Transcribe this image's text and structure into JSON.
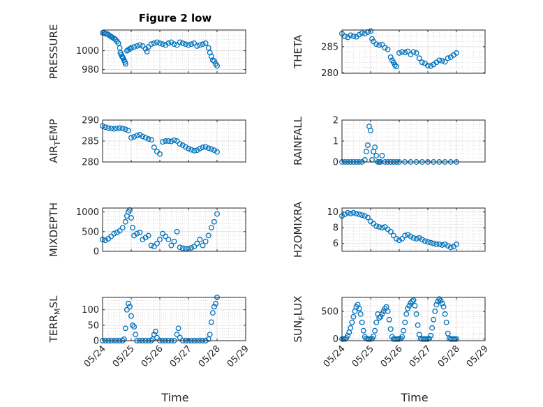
{
  "figure": {
    "title": "Figure 2 low",
    "marker_color": "#0072BD",
    "xlabel": "Time"
  },
  "chart_data": [
    {
      "type": "scatter",
      "id": "pressure",
      "ylabel": "PRESSURE",
      "xlim": [
        0,
        5
      ],
      "ylim": [
        976,
        1022
      ],
      "yticks": [
        980,
        1000
      ],
      "xticks": [
        0,
        1,
        2,
        3,
        4,
        5
      ],
      "xticklabels": [
        "05/24",
        "05/25",
        "05/26",
        "05/27",
        "05/28",
        "05/29"
      ],
      "grid": true,
      "x": [
        0,
        0.05,
        0.1,
        0.15,
        0.2,
        0.25,
        0.3,
        0.35,
        0.4,
        0.45,
        0.5,
        0.55,
        0.6,
        0.62,
        0.65,
        0.68,
        0.7,
        0.72,
        0.75,
        0.78,
        0.8,
        0.85,
        0.9,
        0.95,
        1.0,
        1.1,
        1.2,
        1.3,
        1.4,
        1.5,
        1.55,
        1.6,
        1.7,
        1.8,
        1.9,
        2.0,
        2.1,
        2.2,
        2.3,
        2.4,
        2.5,
        2.6,
        2.7,
        2.8,
        2.9,
        3.0,
        3.1,
        3.2,
        3.3,
        3.4,
        3.5,
        3.6,
        3.7,
        3.75,
        3.8,
        3.85,
        3.9,
        3.95,
        4.0
      ],
      "y": [
        1019,
        1019,
        1018,
        1018,
        1017,
        1016,
        1015,
        1014,
        1013,
        1012,
        1010,
        1008,
        1003,
        998,
        996,
        994,
        993,
        992,
        990,
        988,
        986,
        1000,
        1001,
        1002,
        1003,
        1004,
        1005,
        1006,
        1005,
        1002,
        999,
        1004,
        1007,
        1008,
        1009,
        1008,
        1007,
        1006,
        1008,
        1009,
        1007,
        1006,
        1009,
        1008,
        1007,
        1006,
        1007,
        1008,
        1005,
        1006,
        1007,
        1008,
        1003,
        998,
        994,
        990,
        989,
        986,
        984
      ]
    },
    {
      "type": "scatter",
      "id": "theta",
      "ylabel": "THETA",
      "xlim": [
        0,
        5
      ],
      "ylim": [
        279.9,
        288.2
      ],
      "yticks": [
        280,
        285
      ],
      "xticks": [
        0,
        1,
        2,
        3,
        4,
        5
      ],
      "xticklabels": [
        "05/24",
        "05/25",
        "05/26",
        "05/27",
        "05/28",
        "05/29"
      ],
      "grid": true,
      "x": [
        0,
        0.1,
        0.2,
        0.3,
        0.4,
        0.5,
        0.6,
        0.7,
        0.8,
        0.9,
        1.0,
        1.05,
        1.1,
        1.2,
        1.3,
        1.4,
        1.5,
        1.6,
        1.7,
        1.75,
        1.8,
        1.85,
        1.9,
        2.0,
        2.1,
        2.2,
        2.3,
        2.4,
        2.5,
        2.6,
        2.7,
        2.8,
        2.9,
        3.0,
        3.1,
        3.2,
        3.3,
        3.4,
        3.5,
        3.6,
        3.7,
        3.8,
        3.9,
        4.0
      ],
      "y": [
        287.5,
        287,
        286.8,
        287.2,
        287,
        286.9,
        287.3,
        287.6,
        287.5,
        287.8,
        288,
        286.5,
        286,
        285.5,
        285.3,
        285.4,
        284.8,
        284.5,
        283,
        282.4,
        282,
        281.5,
        281.2,
        283.8,
        284,
        283.9,
        284.1,
        283.5,
        284,
        283.8,
        282.8,
        282,
        281.8,
        281.4,
        281.3,
        281.6,
        282,
        282.4,
        282.3,
        282.1,
        282.8,
        283,
        283.4,
        283.8
      ]
    },
    {
      "type": "scatter",
      "id": "air_temp",
      "ylabel": "AIR_TEMP",
      "xlim": [
        0,
        5
      ],
      "ylim": [
        280,
        290
      ],
      "yticks": [
        280,
        285,
        290
      ],
      "xticks": [
        0,
        1,
        2,
        3,
        4,
        5
      ],
      "xticklabels": [
        "05/24",
        "05/25",
        "05/26",
        "05/27",
        "05/28",
        "05/29"
      ],
      "grid": true,
      "x": [
        0,
        0.1,
        0.2,
        0.3,
        0.4,
        0.5,
        0.6,
        0.7,
        0.8,
        0.9,
        1.0,
        1.1,
        1.2,
        1.3,
        1.4,
        1.5,
        1.6,
        1.7,
        1.8,
        1.9,
        2.0,
        2.1,
        2.2,
        2.3,
        2.4,
        2.5,
        2.6,
        2.7,
        2.8,
        2.9,
        3.0,
        3.1,
        3.2,
        3.3,
        3.4,
        3.5,
        3.6,
        3.7,
        3.8,
        3.9,
        4.0
      ],
      "y": [
        288.6,
        288.3,
        288.1,
        288,
        287.9,
        288,
        288.1,
        288,
        287.8,
        287.5,
        285.8,
        286,
        286.3,
        286.5,
        286.1,
        285.8,
        285.5,
        285.3,
        283.5,
        282.5,
        281.9,
        284.8,
        285,
        285,
        284.9,
        285.2,
        285,
        284.3,
        284,
        283.6,
        283.2,
        282.9,
        282.7,
        282.8,
        283.2,
        283.5,
        283.6,
        283.3,
        283.1,
        282.8,
        282.4
      ]
    },
    {
      "type": "scatter",
      "id": "rainfall",
      "ylabel": "RAINFALL",
      "xlim": [
        0,
        5
      ],
      "ylim": [
        0,
        2
      ],
      "yticks": [
        0,
        1,
        2
      ],
      "xticks": [
        0,
        1,
        2,
        3,
        4,
        5
      ],
      "xticklabels": [
        "05/24",
        "05/25",
        "05/26",
        "05/27",
        "05/28",
        "05/29"
      ],
      "grid": true,
      "x": [
        0,
        0.1,
        0.2,
        0.3,
        0.4,
        0.5,
        0.6,
        0.7,
        0.8,
        0.85,
        0.9,
        0.95,
        1.0,
        1.05,
        1.1,
        1.15,
        1.2,
        1.25,
        1.3,
        1.35,
        1.4,
        1.5,
        1.6,
        1.7,
        1.8,
        1.9,
        2.0,
        2.2,
        2.4,
        2.6,
        2.8,
        3.0,
        3.2,
        3.4,
        3.6,
        3.8,
        4.0
      ],
      "y": [
        0,
        0,
        0,
        0,
        0,
        0,
        0,
        0,
        0.1,
        0.5,
        0.8,
        1.7,
        1.5,
        0.1,
        0.5,
        0.7,
        0.3,
        0,
        0,
        0,
        0.3,
        0,
        0,
        0,
        0,
        0,
        0,
        0,
        0,
        0,
        0,
        0,
        0,
        0,
        0,
        0,
        0
      ]
    },
    {
      "type": "scatter",
      "id": "mixdepth",
      "ylabel": "MIXDEPTH",
      "xlim": [
        0,
        5
      ],
      "ylim": [
        0,
        1100
      ],
      "yticks": [
        0,
        500,
        1000
      ],
      "xticks": [
        0,
        1,
        2,
        3,
        4,
        5
      ],
      "xticklabels": [
        "05/24",
        "05/25",
        "05/26",
        "05/27",
        "05/28",
        "05/29"
      ],
      "grid": true,
      "x": [
        0,
        0.1,
        0.2,
        0.3,
        0.4,
        0.5,
        0.6,
        0.7,
        0.8,
        0.85,
        0.9,
        0.95,
        1.0,
        1.05,
        1.1,
        1.2,
        1.3,
        1.4,
        1.5,
        1.6,
        1.7,
        1.8,
        1.9,
        2.0,
        2.1,
        2.2,
        2.3,
        2.4,
        2.5,
        2.6,
        2.7,
        2.8,
        2.9,
        3.0,
        3.1,
        3.2,
        3.3,
        3.4,
        3.5,
        3.6,
        3.7,
        3.8,
        3.9,
        4.0
      ],
      "y": [
        300,
        280,
        320,
        380,
        450,
        480,
        520,
        600,
        750,
        900,
        1000,
        1050,
        850,
        600,
        400,
        450,
        480,
        300,
        350,
        400,
        150,
        120,
        200,
        300,
        450,
        380,
        300,
        150,
        250,
        500,
        100,
        80,
        70,
        60,
        90,
        120,
        200,
        300,
        150,
        250,
        400,
        600,
        750,
        950
      ]
    },
    {
      "type": "scatter",
      "id": "h2omixra",
      "ylabel": "H2OMIXRA",
      "xlim": [
        0,
        5
      ],
      "ylim": [
        5,
        10.5
      ],
      "yticks": [
        6,
        8,
        10
      ],
      "xticks": [
        0,
        1,
        2,
        3,
        4,
        5
      ],
      "xticklabels": [
        "05/24",
        "05/25",
        "05/26",
        "05/27",
        "05/28",
        "05/29"
      ],
      "grid": true,
      "x": [
        0,
        0.1,
        0.2,
        0.3,
        0.4,
        0.5,
        0.6,
        0.7,
        0.8,
        0.9,
        1.0,
        1.1,
        1.2,
        1.3,
        1.4,
        1.5,
        1.6,
        1.7,
        1.8,
        1.9,
        2.0,
        2.1,
        2.2,
        2.3,
        2.4,
        2.5,
        2.6,
        2.7,
        2.8,
        2.9,
        3.0,
        3.1,
        3.2,
        3.3,
        3.4,
        3.5,
        3.6,
        3.7,
        3.8,
        3.9,
        4.0
      ],
      "y": [
        9.5,
        9.7,
        9.9,
        9.8,
        9.9,
        9.8,
        9.7,
        9.6,
        9.5,
        9.3,
        8.8,
        8.5,
        8.2,
        8.1,
        8,
        8.1,
        7.8,
        7.5,
        7,
        6.6,
        6.4,
        6.6,
        7,
        7.1,
        6.9,
        6.7,
        6.6,
        6.7,
        6.5,
        6.3,
        6.2,
        6.1,
        6.0,
        5.9,
        5.9,
        5.8,
        5.9,
        5.7,
        5.5,
        5.6,
        5.9
      ]
    },
    {
      "type": "scatter",
      "id": "terr_msl",
      "ylabel": "TERR_MSL",
      "xlim": [
        0,
        5
      ],
      "ylim": [
        0,
        140
      ],
      "yticks": [
        0,
        50,
        100
      ],
      "xticks": [
        0,
        1,
        2,
        3,
        4,
        5
      ],
      "xticklabels": [
        "05/24",
        "05/25",
        "05/26",
        "05/27",
        "05/28",
        "05/29"
      ],
      "grid": true,
      "x": [
        0,
        0.1,
        0.2,
        0.3,
        0.4,
        0.5,
        0.6,
        0.7,
        0.75,
        0.8,
        0.85,
        0.9,
        0.95,
        1.0,
        1.05,
        1.1,
        1.15,
        1.2,
        1.3,
        1.4,
        1.5,
        1.6,
        1.7,
        1.75,
        1.8,
        1.85,
        1.9,
        2.0,
        2.1,
        2.2,
        2.3,
        2.4,
        2.5,
        2.6,
        2.65,
        2.7,
        2.8,
        2.9,
        3.0,
        3.1,
        3.2,
        3.3,
        3.4,
        3.5,
        3.6,
        3.7,
        3.75,
        3.8,
        3.85,
        3.9,
        3.95,
        4.0
      ],
      "y": [
        0,
        0,
        0,
        0,
        0,
        0,
        0,
        0,
        5,
        40,
        100,
        120,
        110,
        80,
        50,
        45,
        20,
        0,
        0,
        0,
        0,
        0,
        0,
        5,
        20,
        30,
        10,
        0,
        0,
        0,
        0,
        0,
        0,
        20,
        40,
        10,
        0,
        0,
        0,
        0,
        0,
        0,
        0,
        0,
        0,
        5,
        20,
        60,
        90,
        110,
        120,
        140
      ]
    },
    {
      "type": "scatter",
      "id": "sun_flux",
      "ylabel": "SUN_FLUX",
      "xlim": [
        0,
        5
      ],
      "ylim": [
        -30,
        750
      ],
      "yticks": [
        0,
        500
      ],
      "xticks": [
        0,
        1,
        2,
        3,
        4,
        5
      ],
      "xticklabels": [
        "05/24",
        "05/25",
        "05/26",
        "05/27",
        "05/28",
        "05/29"
      ],
      "grid": true,
      "x": [
        0,
        0.05,
        0.1,
        0.15,
        0.2,
        0.25,
        0.3,
        0.35,
        0.4,
        0.45,
        0.5,
        0.55,
        0.6,
        0.65,
        0.7,
        0.75,
        0.8,
        0.85,
        0.9,
        0.95,
        1.0,
        1.05,
        1.1,
        1.15,
        1.2,
        1.25,
        1.3,
        1.35,
        1.4,
        1.45,
        1.5,
        1.55,
        1.6,
        1.65,
        1.7,
        1.75,
        1.8,
        1.85,
        1.9,
        1.95,
        2.0,
        2.05,
        2.1,
        2.15,
        2.2,
        2.25,
        2.3,
        2.35,
        2.4,
        2.45,
        2.5,
        2.55,
        2.6,
        2.65,
        2.7,
        2.75,
        2.8,
        2.85,
        2.9,
        2.95,
        3.0,
        3.05,
        3.1,
        3.15,
        3.2,
        3.25,
        3.3,
        3.35,
        3.4,
        3.45,
        3.5,
        3.55,
        3.6,
        3.65,
        3.7,
        3.75,
        3.8,
        3.85,
        3.9,
        3.95,
        4.0
      ],
      "y": [
        0,
        0,
        0,
        20,
        60,
        120,
        200,
        300,
        400,
        500,
        580,
        620,
        550,
        450,
        300,
        150,
        40,
        10,
        0,
        0,
        0,
        10,
        50,
        150,
        300,
        450,
        380,
        400,
        450,
        500,
        550,
        580,
        500,
        350,
        180,
        40,
        0,
        0,
        0,
        0,
        0,
        10,
        40,
        150,
        300,
        450,
        550,
        600,
        650,
        680,
        700,
        600,
        450,
        250,
        80,
        10,
        0,
        0,
        0,
        0,
        0,
        10,
        60,
        200,
        350,
        500,
        620,
        680,
        720,
        690,
        640,
        580,
        450,
        300,
        100,
        10,
        0,
        0,
        0,
        0,
        0
      ]
    }
  ]
}
